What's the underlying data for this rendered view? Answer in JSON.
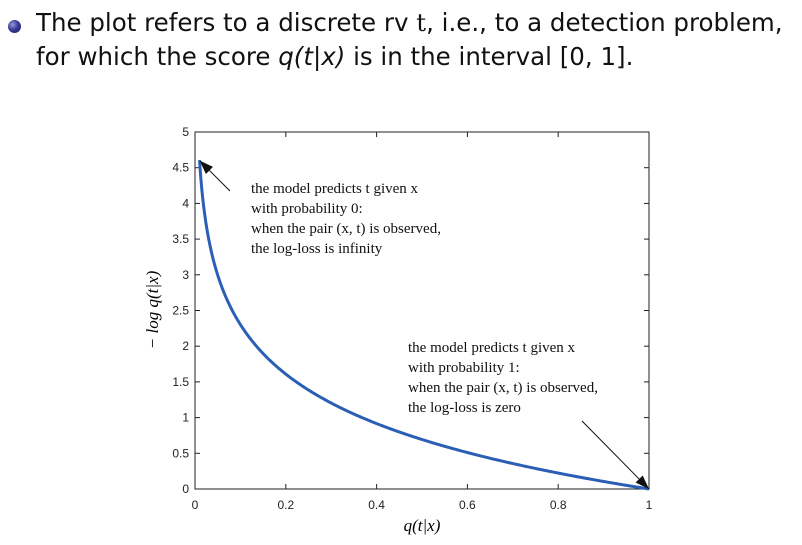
{
  "bullet": {
    "part1": "The plot refers to a discrete rv ",
    "var_t": "t",
    "part2": ", i.e., to a detection problem, for which the score ",
    "score": "q(t|x)",
    "part3": " is in the interval ",
    "interval": "[0, 1]",
    "part4": "."
  },
  "chart_data": {
    "type": "line",
    "function": "-log q",
    "x_start": 0.01,
    "xlim": [
      0,
      1
    ],
    "ylim": [
      0,
      5
    ],
    "xticks": [
      "0",
      "0.2",
      "0.4",
      "0.6",
      "0.8",
      "1"
    ],
    "yticks": [
      "0",
      "0.5",
      "1",
      "1.5",
      "2",
      "2.5",
      "3",
      "3.5",
      "4",
      "4.5",
      "5"
    ],
    "xlabel": "q(t|x)",
    "ylabel": "− log q(t|x)",
    "line_color": "#2b5fb5",
    "annotations": [
      {
        "lines": [
          "the model predicts t given x",
          "with probability 0:",
          "when the pair (x, t) is observed,",
          "the log-loss is infinity"
        ],
        "arrow_to": [
          0.01,
          4.6
        ]
      },
      {
        "lines": [
          "the model predicts t given x",
          "with probability 1:",
          "when the pair (x, t) is observed,",
          "the log-loss is zero"
        ],
        "arrow_to": [
          1,
          0
        ]
      }
    ]
  }
}
